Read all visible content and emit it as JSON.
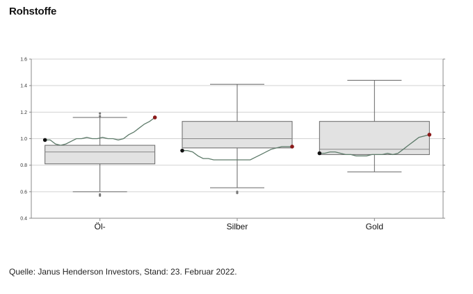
{
  "page": {
    "title": "Rohstoffe",
    "source": "Quelle: Janus Henderson Investors, Stand: 23. Februar 2022."
  },
  "colors": {
    "box_fill": "#e2e2e2",
    "box_stroke": "#666666",
    "grid": "#d2d2d2",
    "line": "#5d7a69",
    "start_dot": "#111111",
    "end_dot": "#8b1a1a"
  },
  "chart_data": {
    "type": "box-with-line",
    "title": "",
    "xlabel": "",
    "ylabel": "",
    "ylim": [
      0.4,
      1.6
    ],
    "yticks": [
      "0.4",
      "0.6",
      "0.8",
      "1.0",
      "1.2",
      "1.4",
      "1.6"
    ],
    "grid": true,
    "legend": "none",
    "categories": [
      "Öl-",
      "Silber",
      "Gold"
    ],
    "boxes": [
      {
        "whisker_low": 0.6,
        "q1": 0.81,
        "median": 0.9,
        "q3": 0.95,
        "whisker_high": 1.16,
        "outliers": [
          0.57,
          0.58,
          1.17,
          1.19
        ]
      },
      {
        "whisker_low": 0.63,
        "q1": 0.93,
        "median": 1.0,
        "q3": 1.13,
        "whisker_high": 1.41,
        "outliers": [
          0.59,
          0.6
        ]
      },
      {
        "whisker_low": 0.75,
        "q1": 0.88,
        "median": 0.92,
        "q3": 1.13,
        "whisker_high": 1.44,
        "outliers": []
      }
    ],
    "series": [
      {
        "values": [
          0.99,
          0.99,
          0.96,
          0.95,
          0.96,
          0.98,
          1.0,
          1.0,
          1.01,
          1.0,
          1.0,
          1.01,
          1.0,
          1.0,
          0.99,
          1.0,
          1.03,
          1.05,
          1.08,
          1.11,
          1.13,
          1.16
        ]
      },
      {
        "values": [
          0.91,
          0.91,
          0.9,
          0.87,
          0.85,
          0.85,
          0.84,
          0.84,
          0.84,
          0.84,
          0.84,
          0.84,
          0.84,
          0.84,
          0.86,
          0.88,
          0.9,
          0.92,
          0.93,
          0.94,
          0.94,
          0.94
        ]
      },
      {
        "values": [
          0.89,
          0.89,
          0.9,
          0.9,
          0.89,
          0.88,
          0.88,
          0.87,
          0.87,
          0.87,
          0.88,
          0.88,
          0.88,
          0.89,
          0.88,
          0.89,
          0.92,
          0.95,
          0.98,
          1.01,
          1.02,
          1.03
        ]
      }
    ]
  }
}
